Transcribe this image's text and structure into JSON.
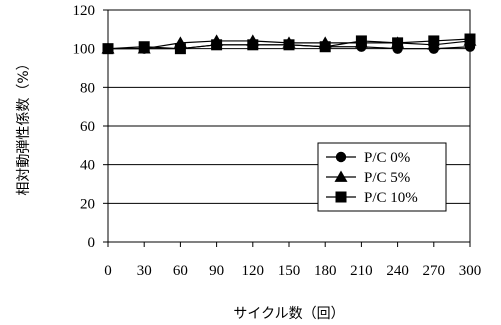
{
  "chart_data": {
    "type": "line",
    "xlabel": "サイクル数（回）",
    "ylabel": "相対動弾性係数（%）",
    "x": [
      0,
      30,
      60,
      90,
      120,
      150,
      180,
      210,
      240,
      270,
      300
    ],
    "xticks": [
      "0",
      "30",
      "60",
      "90",
      "120",
      "150",
      "180",
      "210",
      "240",
      "270",
      "300"
    ],
    "yticks": [
      "0",
      "20",
      "40",
      "60",
      "80",
      "100",
      "120"
    ],
    "xlim": [
      0,
      300
    ],
    "ylim": [
      0,
      120
    ],
    "grid": "horizontal",
    "legend_position": "right",
    "series": [
      {
        "name": "P/C  0%",
        "marker": "circle",
        "values": [
          100,
          100,
          100,
          102,
          102,
          102,
          101,
          101,
          100,
          100,
          101
        ]
      },
      {
        "name": "P/C  5%",
        "marker": "triangle",
        "values": [
          100,
          100,
          103,
          104,
          104,
          103,
          103,
          103,
          103,
          102,
          104
        ]
      },
      {
        "name": "P/C  10%",
        "marker": "square",
        "values": [
          100,
          101,
          100,
          102,
          102,
          102,
          101,
          104,
          103,
          104,
          105
        ]
      }
    ]
  }
}
